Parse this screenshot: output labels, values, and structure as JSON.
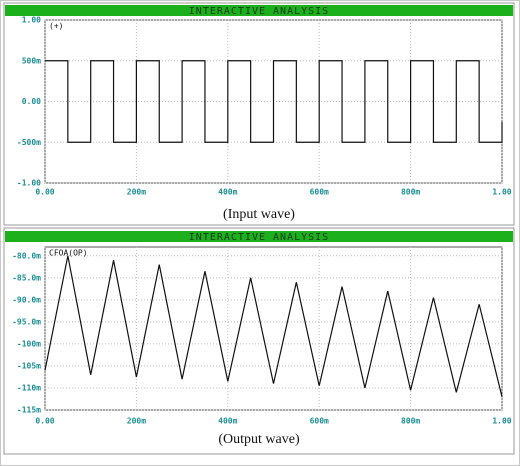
{
  "chart_data": [
    {
      "type": "line",
      "title": "INTERACTIVE ANALYSIS",
      "caption": "(Input wave)",
      "x": [
        0,
        0.05,
        0.05,
        0.1,
        0.1,
        0.15,
        0.15,
        0.2,
        0.2,
        0.25,
        0.25,
        0.3,
        0.3,
        0.35,
        0.35,
        0.4,
        0.4,
        0.45,
        0.45,
        0.5,
        0.5,
        0.55,
        0.55,
        0.6,
        0.6,
        0.65,
        0.65,
        0.7,
        0.7,
        0.75,
        0.75,
        0.8,
        0.8,
        0.85,
        0.85,
        0.9,
        0.9,
        0.95,
        0.95,
        1.0,
        1.0
      ],
      "series": [
        {
          "name": "(+)",
          "color": "#111111",
          "values": [
            0.5,
            0.5,
            -0.5,
            -0.5,
            0.5,
            0.5,
            -0.5,
            -0.5,
            0.5,
            0.5,
            -0.5,
            -0.5,
            0.5,
            0.5,
            -0.5,
            -0.5,
            0.5,
            0.5,
            -0.5,
            -0.5,
            0.5,
            0.5,
            -0.5,
            -0.5,
            0.5,
            0.5,
            -0.5,
            -0.5,
            0.5,
            0.5,
            -0.5,
            -0.5,
            0.5,
            0.5,
            -0.5,
            -0.5,
            0.5,
            0.5,
            -0.5,
            -0.5,
            -0.25
          ]
        }
      ],
      "xlim": [
        0,
        1.0
      ],
      "xticks": [
        {
          "value": 0,
          "label": "0.00"
        },
        {
          "value": 0.2,
          "label": "200m"
        },
        {
          "value": 0.4,
          "label": "400m"
        },
        {
          "value": 0.6,
          "label": "600m"
        },
        {
          "value": 0.8,
          "label": "800m"
        },
        {
          "value": 1.0,
          "label": "1.00"
        }
      ],
      "ylim": [
        -1,
        1
      ],
      "yticks": [
        {
          "value": 1,
          "label": "1.00"
        },
        {
          "value": 0.5,
          "label": "500m"
        },
        {
          "value": 0,
          "label": "0.00"
        },
        {
          "value": -0.5,
          "label": "-500m"
        },
        {
          "value": -1,
          "label": "-1.00"
        }
      ],
      "grid": true
    },
    {
      "type": "line",
      "title": "INTERACTIVE ANALYSIS",
      "caption": "(Output wave)",
      "x": [
        0,
        0.05,
        0.1,
        0.15,
        0.2,
        0.25,
        0.3,
        0.35,
        0.4,
        0.45,
        0.5,
        0.55,
        0.6,
        0.65,
        0.7,
        0.75,
        0.8,
        0.85,
        0.9,
        0.95,
        1.0
      ],
      "series": [
        {
          "name": "CFOA(OP)",
          "color": "#111111",
          "values": [
            -0.106,
            -0.08,
            -0.107,
            -0.081,
            -0.1075,
            -0.082,
            -0.108,
            -0.0835,
            -0.1085,
            -0.085,
            -0.109,
            -0.086,
            -0.1095,
            -0.087,
            -0.11,
            -0.088,
            -0.1105,
            -0.0895,
            -0.111,
            -0.091,
            -0.112
          ]
        }
      ],
      "xlim": [
        0,
        1.0
      ],
      "xticks": [
        {
          "value": 0,
          "label": "0.00"
        },
        {
          "value": 0.2,
          "label": "200m"
        },
        {
          "value": 0.4,
          "label": "400m"
        },
        {
          "value": 0.6,
          "label": "600m"
        },
        {
          "value": 0.8,
          "label": "800m"
        },
        {
          "value": 1.0,
          "label": "1.00"
        }
      ],
      "ylim": [
        -0.115,
        -0.078
      ],
      "yticks": [
        {
          "value": -0.08,
          "label": "-80.0m"
        },
        {
          "value": -0.085,
          "label": "-85.0m"
        },
        {
          "value": -0.09,
          "label": "-90.0m"
        },
        {
          "value": -0.095,
          "label": "-95.0m"
        },
        {
          "value": -0.1,
          "label": "-100m"
        },
        {
          "value": -0.105,
          "label": "-105m"
        },
        {
          "value": -0.11,
          "label": "-110m"
        },
        {
          "value": -0.115,
          "label": "-115m"
        }
      ],
      "grid": true
    }
  ]
}
